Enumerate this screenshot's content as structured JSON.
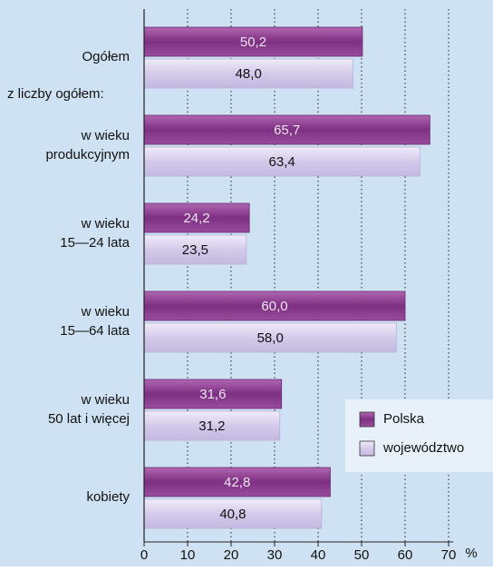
{
  "chart_data": {
    "type": "hbar",
    "categories": [
      [
        "Ogółem"
      ],
      [
        "w wieku",
        "produkcyjnym"
      ],
      [
        "w wieku",
        "15—24 lata"
      ],
      [
        "w wieku",
        "15—64 lata"
      ],
      [
        "w wieku",
        "50 lat i więcej"
      ],
      [
        "kobiety"
      ]
    ],
    "annotation": "z liczby ogółem:",
    "series": [
      {
        "name": "Polska",
        "color": "#8b3f8e",
        "values": [
          50.2,
          65.7,
          24.2,
          60.0,
          31.6,
          42.8
        ],
        "value_labels": [
          "50,2",
          "65,7",
          "24,2",
          "60,0",
          "31,6",
          "42,8"
        ]
      },
      {
        "name": "województwo",
        "color": "#d9d2ee",
        "values": [
          48.0,
          63.4,
          23.5,
          58.0,
          31.2,
          40.8
        ],
        "value_labels": [
          "48,0",
          "63,4",
          "23,5",
          "58,0",
          "31,2",
          "40,8"
        ]
      }
    ],
    "xlim": [
      0,
      70
    ],
    "xticks": [
      0,
      10,
      20,
      30,
      40,
      50,
      60,
      70
    ],
    "x_unit": "%",
    "grid": true,
    "legend": "lower right"
  }
}
